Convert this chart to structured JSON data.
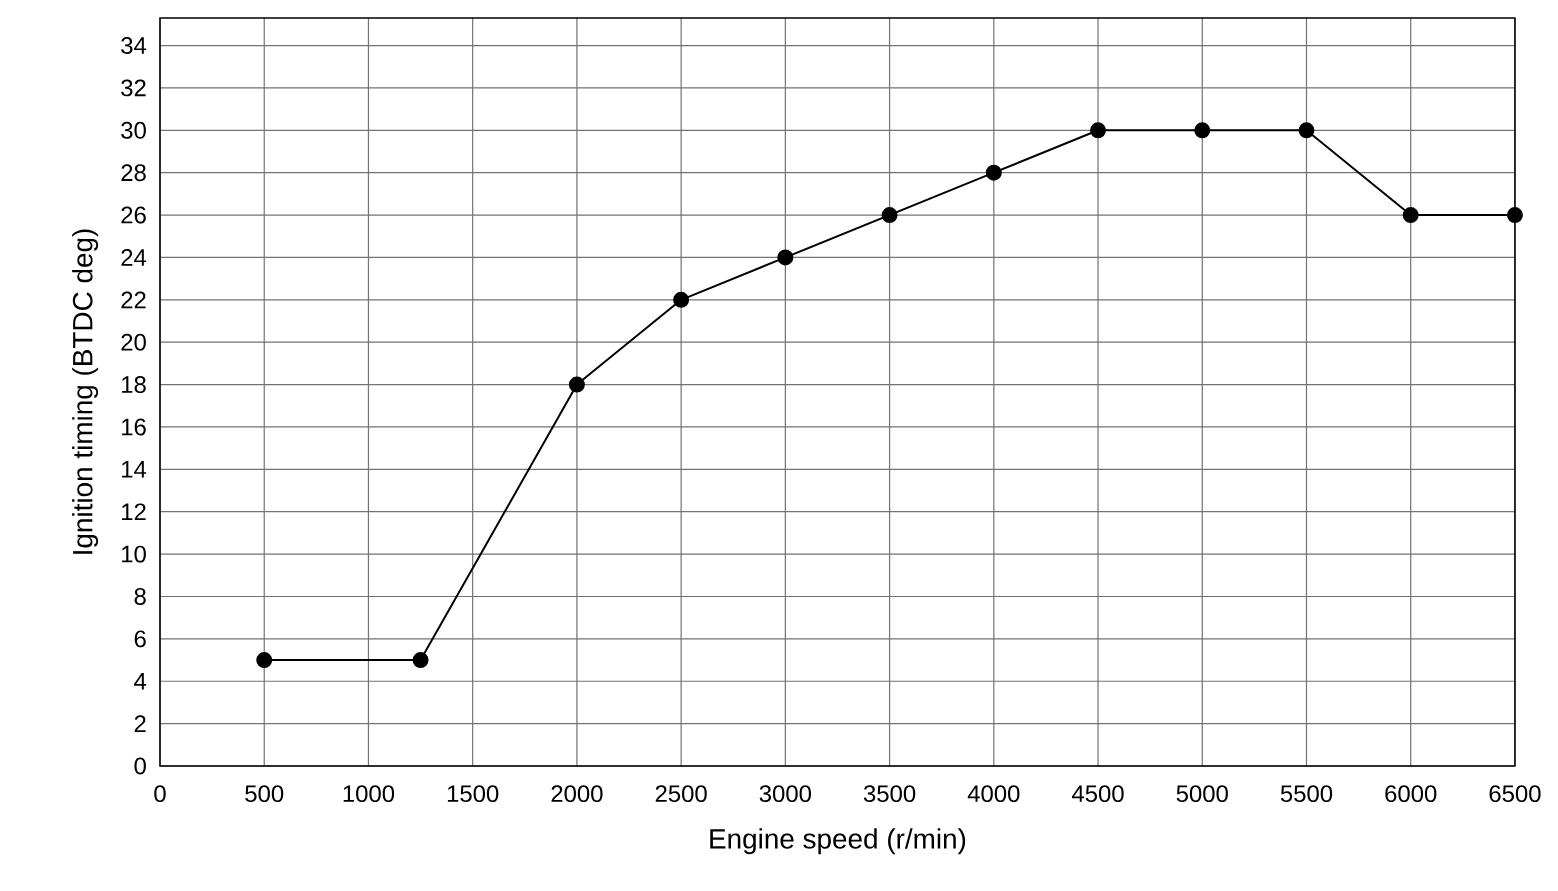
{
  "chart_data": {
    "type": "line",
    "xlabel": "Engine speed (r/min)",
    "ylabel": "Ignition timing (BTDC deg)",
    "x": [
      500,
      1250,
      2000,
      2500,
      3000,
      3500,
      4000,
      4500,
      5000,
      5500,
      6000,
      6500
    ],
    "values": [
      5,
      5,
      18,
      22,
      24,
      26,
      28,
      30,
      30,
      30,
      26,
      26
    ],
    "color": "#000000",
    "marker": "circle",
    "line_style": "solid",
    "grid": true,
    "xlim": [
      0,
      6500
    ],
    "ylim": [
      0,
      35.3
    ],
    "xticks": [
      0,
      500,
      1000,
      1500,
      2000,
      2500,
      3000,
      3500,
      4000,
      4500,
      5000,
      5500,
      6000,
      6500
    ],
    "yticks": [
      0,
      2,
      4,
      6,
      8,
      10,
      12,
      14,
      16,
      18,
      20,
      22,
      24,
      26,
      28,
      30,
      32,
      34
    ]
  }
}
